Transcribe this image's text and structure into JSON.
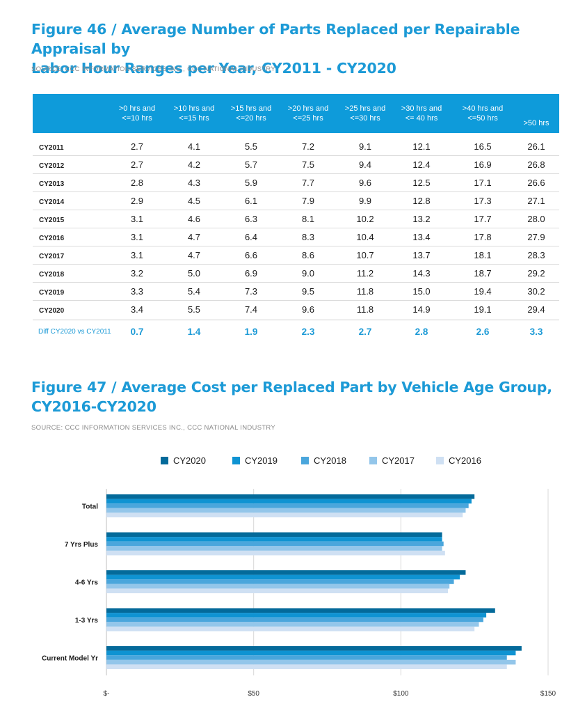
{
  "fig46": {
    "title_line1": "Figure 46 / Average Number of Parts Replaced per Repairable Appraisal by",
    "title_line2": "Labor Hour Ranges per Year, CY2011 - CY2020",
    "source": "SOURCE: CCC INFORMATION SERVICES INC., CCC NATIONAL INDUSTRY",
    "headers": [
      ">0 hrs and\n<=10 hrs",
      ">10 hrs and\n<=15 hrs",
      ">15 hrs and\n<=20 hrs",
      ">20 hrs and\n<=25 hrs",
      ">25 hrs and\n<=30 hrs",
      ">30 hrs and\n<= 40 hrs",
      ">40 hrs and\n<=50 hrs",
      ">50 hrs"
    ],
    "rows": [
      {
        "label": "CY2011",
        "values": [
          "2.7",
          "4.1",
          "5.5",
          "7.2",
          "9.1",
          "12.1",
          "16.5",
          "26.1"
        ]
      },
      {
        "label": "CY2012",
        "values": [
          "2.7",
          "4.2",
          "5.7",
          "7.5",
          "9.4",
          "12.4",
          "16.9",
          "26.8"
        ]
      },
      {
        "label": "CY2013",
        "values": [
          "2.8",
          "4.3",
          "5.9",
          "7.7",
          "9.6",
          "12.5",
          "17.1",
          "26.6"
        ]
      },
      {
        "label": "CY2014",
        "values": [
          "2.9",
          "4.5",
          "6.1",
          "7.9",
          "9.9",
          "12.8",
          "17.3",
          "27.1"
        ]
      },
      {
        "label": "CY2015",
        "values": [
          "3.1",
          "4.6",
          "6.3",
          "8.1",
          "10.2",
          "13.2",
          "17.7",
          "28.0"
        ]
      },
      {
        "label": "CY2016",
        "values": [
          "3.1",
          "4.7",
          "6.4",
          "8.3",
          "10.4",
          "13.4",
          "17.8",
          "27.9"
        ]
      },
      {
        "label": "CY2017",
        "values": [
          "3.1",
          "4.7",
          "6.6",
          "8.6",
          "10.7",
          "13.7",
          "18.1",
          "28.3"
        ]
      },
      {
        "label": "CY2018",
        "values": [
          "3.2",
          "5.0",
          "6.9",
          "9.0",
          "11.2",
          "14.3",
          "18.7",
          "29.2"
        ]
      },
      {
        "label": "CY2019",
        "values": [
          "3.3",
          "5.4",
          "7.3",
          "9.5",
          "11.8",
          "15.0",
          "19.4",
          "30.2"
        ]
      },
      {
        "label": "CY2020",
        "values": [
          "3.4",
          "5.5",
          "7.4",
          "9.6",
          "11.8",
          "14.9",
          "19.1",
          "29.4"
        ]
      }
    ],
    "diff": {
      "label": "Diff CY2020 vs CY2011",
      "values": [
        "0.7",
        "1.4",
        "1.9",
        "2.3",
        "2.7",
        "2.8",
        "2.6",
        "3.3"
      ]
    }
  },
  "fig47": {
    "title_line1": "Figure 47 / Average Cost per Replaced Part by Vehicle Age Group,",
    "title_line2": "CY2016-CY2020",
    "source": "SOURCE: CCC INFORMATION SERVICES INC., CCC NATIONAL INDUSTRY"
  },
  "chart_data": {
    "type": "bar",
    "orientation": "horizontal",
    "categories": [
      "Total",
      "7 Yrs Plus",
      "4-6 Yrs",
      "1-3 Yrs",
      "Current Model Yr"
    ],
    "series": [
      {
        "name": "CY2020",
        "color": "#046a9a",
        "values": [
          125,
          114,
          122,
          132,
          141
        ]
      },
      {
        "name": "CY2019",
        "color": "#0f93d2",
        "values": [
          124,
          114,
          120,
          129,
          139
        ]
      },
      {
        "name": "CY2018",
        "color": "#4aa6dc",
        "values": [
          123,
          114.5,
          118,
          128,
          136
        ]
      },
      {
        "name": "CY2017",
        "color": "#93c6ea",
        "values": [
          122,
          114,
          116.5,
          126.5,
          139
        ]
      },
      {
        "name": "CY2016",
        "color": "#cfe0f3",
        "values": [
          121,
          115,
          116,
          125,
          136
        ]
      }
    ],
    "xlim": [
      0,
      150
    ],
    "xticks": [
      0,
      50,
      100,
      150
    ],
    "xtick_labels": [
      "$-",
      "$50",
      "$100",
      "$150"
    ],
    "legend_position": "top-center",
    "grid": "vertical"
  }
}
